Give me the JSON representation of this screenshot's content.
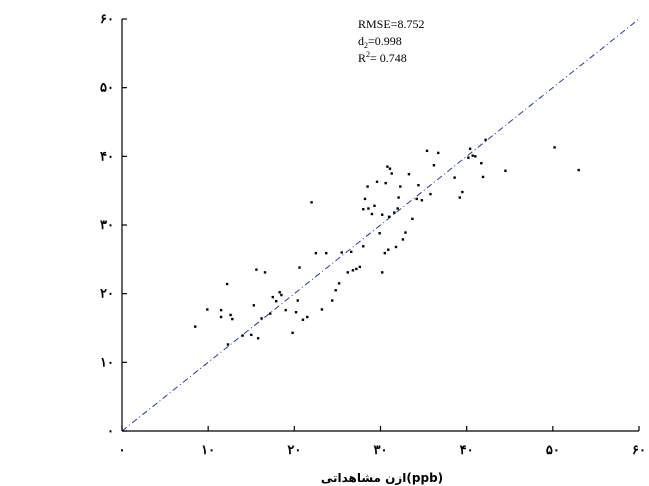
{
  "chart_data": {
    "type": "scatter",
    "title": "",
    "xlabel": "ازن مشاهداتی(ppb)",
    "ylabel": "",
    "xlim": [
      0,
      60
    ],
    "ylim": [
      0,
      60
    ],
    "x_ticks": [
      0,
      10,
      20,
      30,
      40,
      50,
      60
    ],
    "y_ticks": [
      0,
      10,
      20,
      30,
      40,
      50,
      60
    ],
    "x_tick_labels": [
      "۰",
      "۱۰",
      "۲۰",
      "۳۰",
      "۴۰",
      "۵۰",
      "۶۰"
    ],
    "y_tick_labels": [
      "۰",
      "۱۰",
      "۲۰",
      "۳۰",
      "۴۰",
      "۵۰",
      "۶۰"
    ],
    "grid": false,
    "reference_line": {
      "style": "dash-dot",
      "color": "#1f3aa8",
      "from": [
        0,
        0
      ],
      "to": [
        60,
        60
      ]
    },
    "stats": {
      "rmse": "RMSE=8.752",
      "d2_base": "d",
      "d2_sub": "2",
      "d2_value": "=0.998",
      "r2_base": "R",
      "r2_sup": "2",
      "r2_value": "= 0.748"
    },
    "points": [
      [
        8.5,
        15.2
      ],
      [
        9.9,
        17.7
      ],
      [
        11.5,
        16.6
      ],
      [
        11.5,
        17.6
      ],
      [
        12.2,
        21.4
      ],
      [
        12.3,
        12.6
      ],
      [
        12.6,
        16.9
      ],
      [
        12.8,
        16.3
      ],
      [
        14.0,
        13.9
      ],
      [
        15.0,
        14.0
      ],
      [
        15.3,
        18.3
      ],
      [
        15.6,
        23.5
      ],
      [
        15.8,
        13.5
      ],
      [
        16.2,
        16.4
      ],
      [
        16.6,
        23.1
      ],
      [
        17.2,
        17.1
      ],
      [
        17.5,
        19.5
      ],
      [
        17.9,
        18.9
      ],
      [
        18.3,
        20.2
      ],
      [
        18.5,
        19.8
      ],
      [
        19.0,
        17.6
      ],
      [
        19.8,
        14.3
      ],
      [
        20.2,
        17.3
      ],
      [
        20.4,
        19.0
      ],
      [
        20.6,
        23.8
      ],
      [
        21.0,
        16.2
      ],
      [
        21.5,
        16.6
      ],
      [
        22.0,
        33.3
      ],
      [
        22.5,
        25.9
      ],
      [
        23.2,
        17.7
      ],
      [
        23.7,
        25.9
      ],
      [
        24.4,
        19.0
      ],
      [
        24.8,
        20.5
      ],
      [
        25.2,
        21.5
      ],
      [
        25.5,
        26.0
      ],
      [
        26.2,
        23.1
      ],
      [
        26.6,
        26.1
      ],
      [
        26.8,
        23.4
      ],
      [
        27.2,
        23.6
      ],
      [
        27.6,
        23.9
      ],
      [
        28.0,
        26.9
      ],
      [
        28.0,
        32.3
      ],
      [
        28.2,
        33.8
      ],
      [
        28.5,
        35.6
      ],
      [
        28.6,
        32.4
      ],
      [
        29.0,
        31.6
      ],
      [
        29.3,
        32.8
      ],
      [
        29.6,
        36.3
      ],
      [
        29.9,
        28.8
      ],
      [
        30.2,
        23.1
      ],
      [
        30.5,
        25.9
      ],
      [
        30.9,
        26.4
      ],
      [
        30.2,
        31.5
      ],
      [
        30.6,
        36.1
      ],
      [
        30.8,
        38.5
      ],
      [
        31.1,
        38.2
      ],
      [
        31.0,
        31.2
      ],
      [
        31.3,
        37.5
      ],
      [
        31.6,
        31.8
      ],
      [
        31.8,
        26.8
      ],
      [
        32.0,
        32.4
      ],
      [
        32.1,
        34.0
      ],
      [
        32.3,
        35.6
      ],
      [
        32.6,
        27.9
      ],
      [
        32.9,
        28.9
      ],
      [
        33.3,
        37.4
      ],
      [
        33.7,
        30.9
      ],
      [
        34.2,
        33.8
      ],
      [
        34.4,
        35.8
      ],
      [
        34.8,
        33.6
      ],
      [
        35.4,
        40.8
      ],
      [
        35.8,
        34.5
      ],
      [
        36.2,
        38.7
      ],
      [
        36.7,
        40.5
      ],
      [
        38.6,
        36.9
      ],
      [
        39.2,
        34.0
      ],
      [
        39.5,
        34.8
      ],
      [
        40.2,
        39.8
      ],
      [
        40.4,
        41.1
      ],
      [
        40.7,
        40.1
      ],
      [
        41.0,
        40.0
      ],
      [
        41.7,
        39.0
      ],
      [
        41.9,
        37.0
      ],
      [
        42.2,
        42.4
      ],
      [
        44.5,
        37.9
      ],
      [
        50.2,
        41.3
      ],
      [
        53.0,
        38.0
      ]
    ]
  }
}
